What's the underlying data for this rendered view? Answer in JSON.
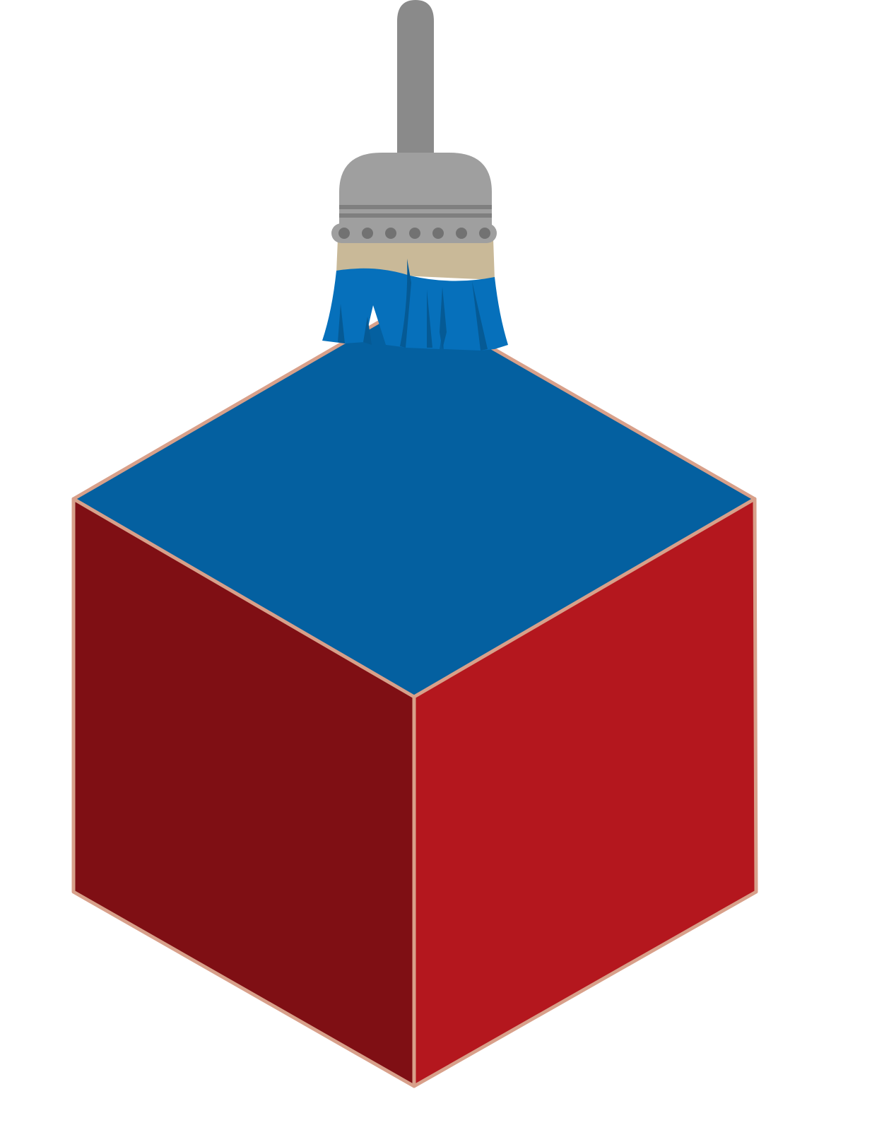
{
  "illustration": {
    "subject": "paintbrush-over-cube",
    "colors": {
      "background": "#ffffff",
      "cube_top": "#0460a0",
      "cube_left": "#7f0f14",
      "cube_right": "#b4171e",
      "cube_edge": "#d8a08a",
      "brush_handle": "#8a8a8a",
      "brush_ferrule": "#9f9f9f",
      "brush_ferrule_band": "#7f7f7f",
      "brush_rivet": "#727272",
      "bristle_base": "#c9b998",
      "bristle_paint": "#0670bb",
      "bristle_shadow": "#055a95"
    }
  }
}
